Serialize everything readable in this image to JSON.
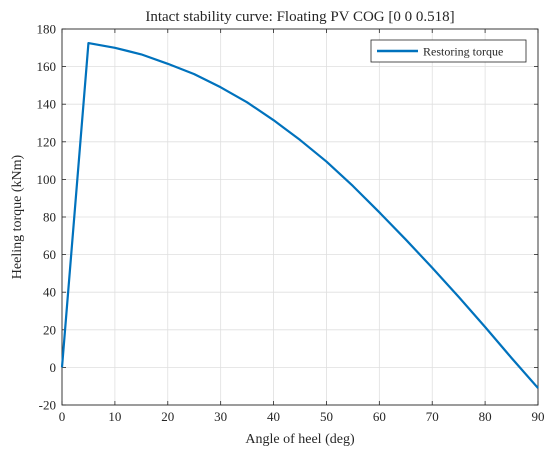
{
  "chart_data": {
    "type": "line",
    "title": "Intact stability curve: Floating PV COG [0 0 0.518]",
    "xlabel": "Angle of heel (deg)",
    "ylabel": "Heeling torque (kNm)",
    "xlim": [
      0,
      90
    ],
    "ylim": [
      -20,
      180
    ],
    "xticks": [
      0,
      10,
      20,
      30,
      40,
      50,
      60,
      70,
      80,
      90
    ],
    "yticks": [
      -20,
      0,
      20,
      40,
      60,
      80,
      100,
      120,
      140,
      160,
      180
    ],
    "grid": true,
    "legend_position": "top-right",
    "series": [
      {
        "name": "Restoring torque",
        "color": "#0072BD",
        "x": [
          0,
          5,
          10,
          15,
          20,
          25,
          30,
          35,
          40,
          45,
          50,
          55,
          60,
          65,
          70,
          75,
          80,
          85,
          90
        ],
        "values": [
          0,
          172.5,
          170,
          166.5,
          161.5,
          156,
          149,
          141,
          131.5,
          121,
          109.5,
          96.5,
          82.5,
          68,
          53,
          37.5,
          21.5,
          5,
          -11
        ]
      }
    ]
  }
}
